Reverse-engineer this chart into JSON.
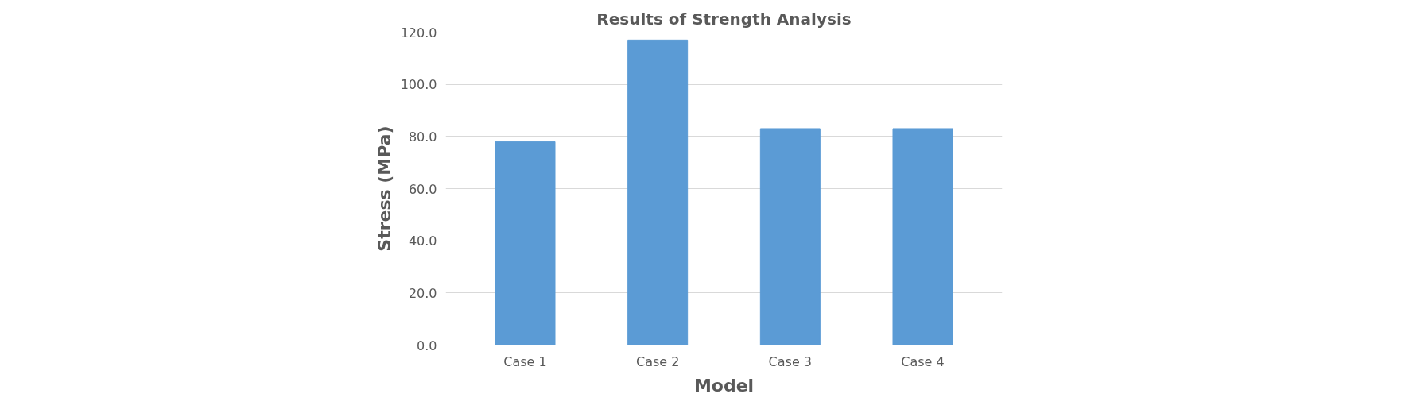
{
  "chart_data": {
    "type": "bar",
    "title": "Results of Strength Analysis",
    "xlabel": "Model",
    "ylabel": "Stress (MPa)",
    "categories": [
      "Case 1",
      "Case 2",
      "Case 3",
      "Case 4"
    ],
    "values": [
      78,
      117,
      83,
      83
    ],
    "color": "#5b9bd5",
    "ylim": [
      0,
      120
    ],
    "yticks": [
      {
        "value": 0,
        "label": "0.0"
      },
      {
        "value": 20,
        "label": "20.0"
      },
      {
        "value": 40,
        "label": "40.0"
      },
      {
        "value": 60,
        "label": "60.0"
      },
      {
        "value": 80,
        "label": "80.0"
      },
      {
        "value": 100,
        "label": "100.0"
      },
      {
        "value": 120,
        "label": "120.0"
      }
    ],
    "grid": "y"
  }
}
